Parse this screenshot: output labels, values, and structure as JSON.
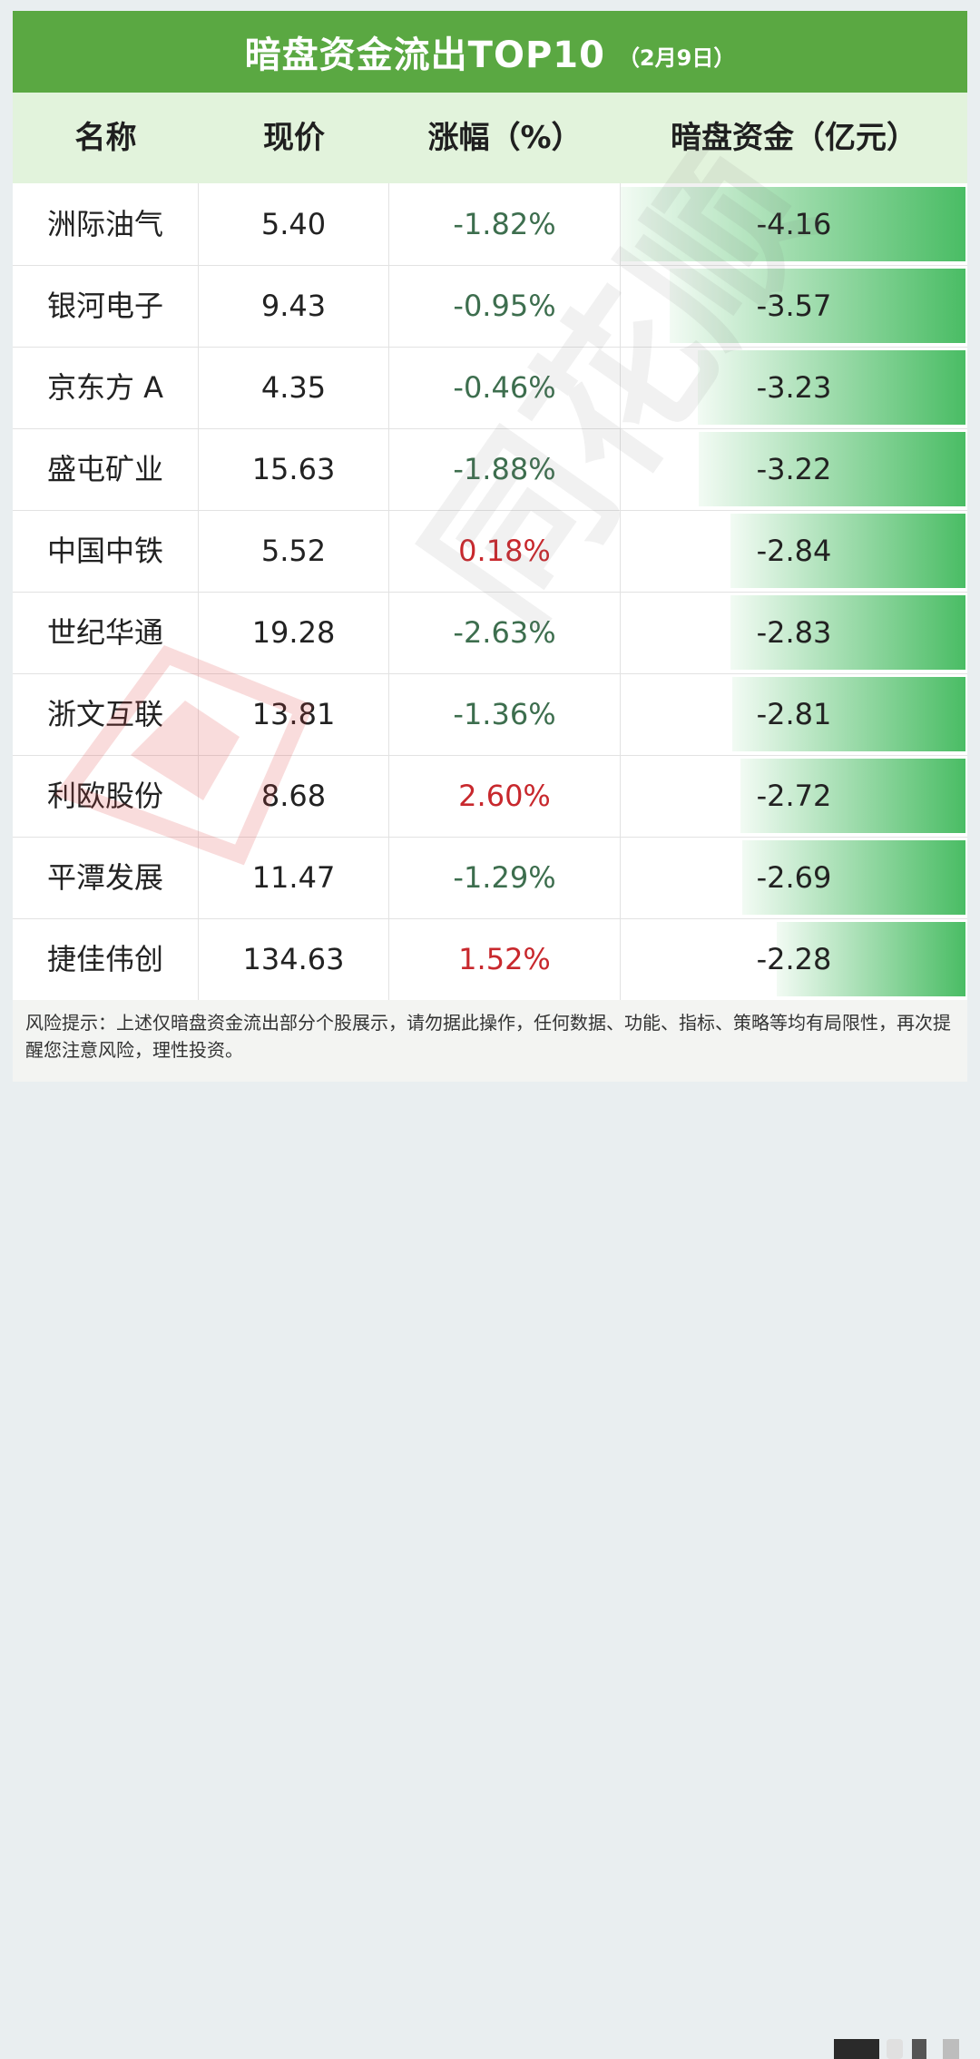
{
  "title": "暗盘资金流出TOP10",
  "date": "（2月9日）",
  "headers": {
    "name": "名称",
    "price": "现价",
    "change": "涨幅（%）",
    "flow": "暗盘资金（亿元）"
  },
  "colors": {
    "title_bg": "#5aa842",
    "header_bg": "#e2f3dc",
    "bar": "#40b95c",
    "negative_text": "#3d6e4e",
    "positive_text": "#c8282d"
  },
  "chart_data": {
    "type": "table",
    "columns": [
      "名称",
      "现价",
      "涨幅（%）",
      "暗盘资金（亿元）"
    ],
    "rows": [
      {
        "name": "洲际油气",
        "price": "5.40",
        "change": "-1.82%",
        "flow": "-4.16"
      },
      {
        "name": "银河电子",
        "price": "9.43",
        "change": "-0.95%",
        "flow": "-3.57"
      },
      {
        "name": "京东方 A",
        "price": "4.35",
        "change": "-0.46%",
        "flow": "-3.23"
      },
      {
        "name": "盛屯矿业",
        "price": "15.63",
        "change": "-1.88%",
        "flow": "-3.22"
      },
      {
        "name": "中国中铁",
        "price": "5.52",
        "change": "0.18%",
        "flow": "-2.84"
      },
      {
        "name": "世纪华通",
        "price": "19.28",
        "change": "-2.63%",
        "flow": "-2.83"
      },
      {
        "name": "浙文互联",
        "price": "13.81",
        "change": "-1.36%",
        "flow": "-2.81"
      },
      {
        "name": "利欧股份",
        "price": "8.68",
        "change": "2.60%",
        "flow": "-2.72"
      },
      {
        "name": "平潭发展",
        "price": "11.47",
        "change": "-1.29%",
        "flow": "-2.69"
      },
      {
        "name": "捷佳伟创",
        "price": "134.63",
        "change": "1.52%",
        "flow": "-2.28"
      }
    ]
  },
  "footer": "风险提示：上述仅暗盘资金流出部分个股展示，请勿据此操作，任何数据、功能、指标、策略等均有局限性，再次提醒您注意风险，理性投资。",
  "watermark": "同花顺"
}
